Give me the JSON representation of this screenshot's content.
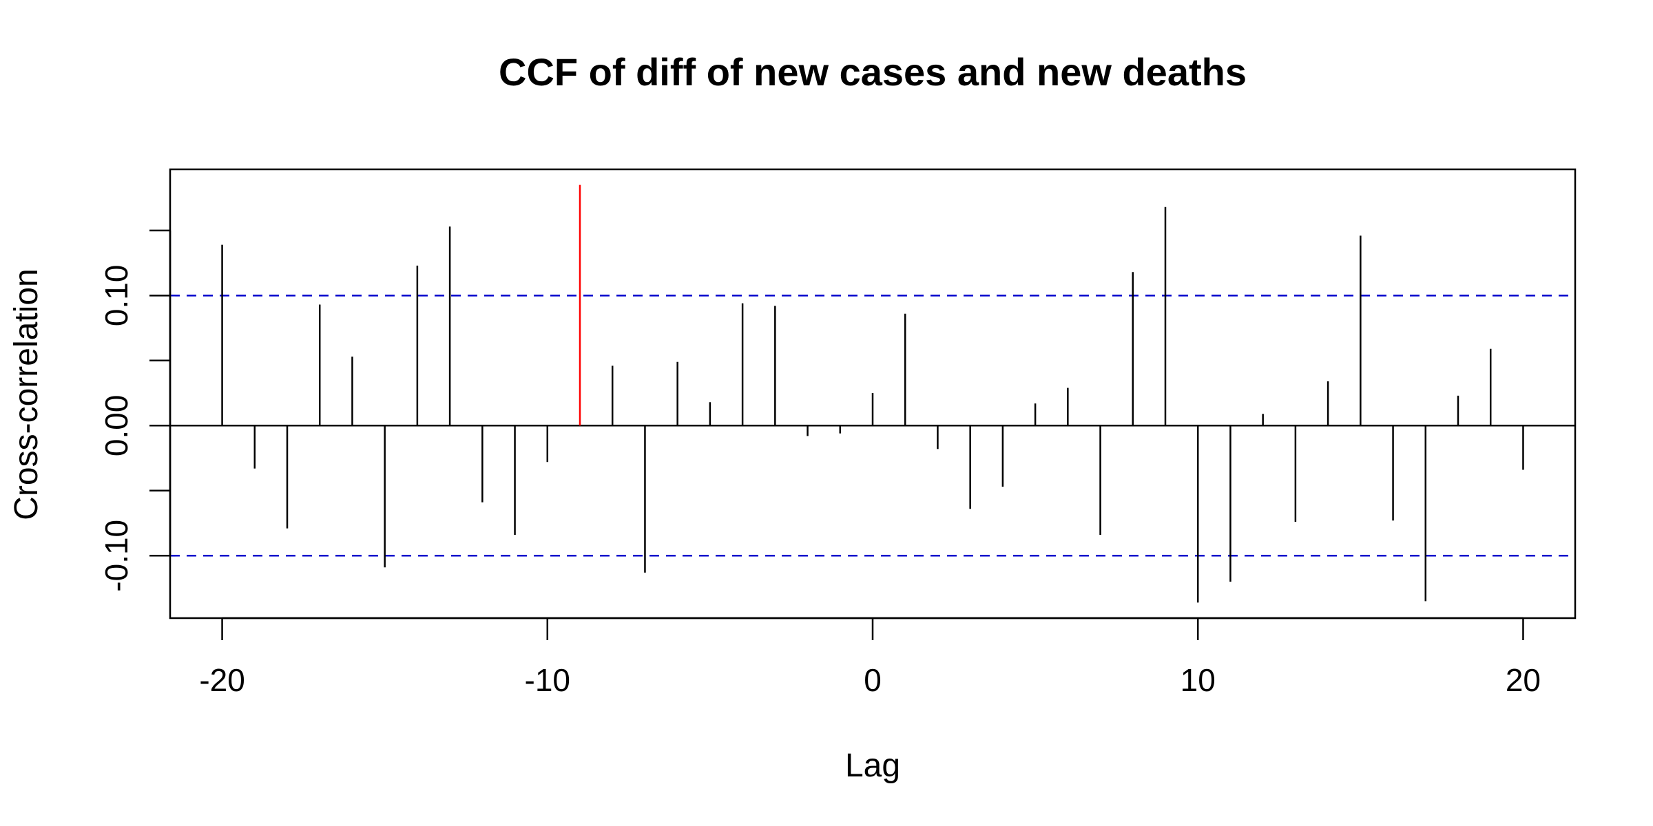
{
  "chart_data": {
    "type": "bar",
    "title": "CCF of diff of new cases and new deaths",
    "xlabel": "Lag",
    "ylabel": "Cross-correlation",
    "xlim": [
      -21.6,
      21.6
    ],
    "ylim": [
      -0.148,
      0.197
    ],
    "x_ticks": [
      -20,
      -10,
      0,
      10,
      20
    ],
    "x_tick_labels": [
      "-20",
      "-10",
      "0",
      "10",
      "20"
    ],
    "y_ticks": [
      -0.1,
      -0.05,
      0.0,
      0.05,
      0.1,
      0.15
    ],
    "y_tick_labels": [
      "-0.10",
      "",
      "0.00",
      "",
      "0.10",
      ""
    ],
    "confidence_bounds": [
      0.1,
      -0.1
    ],
    "highlighted_lag": -9,
    "colors": {
      "bars": "#000000",
      "highlight": "#ff0000",
      "bounds": "#0000cc",
      "zero_line": "#000000"
    },
    "series": [
      {
        "lags": [
          -20,
          -19,
          -18,
          -17,
          -16,
          -15,
          -14,
          -13,
          -12,
          -11,
          -10,
          -9,
          -8,
          -7,
          -6,
          -5,
          -4,
          -3,
          -2,
          -1,
          0,
          1,
          2,
          3,
          4,
          5,
          6,
          7,
          8,
          9,
          10,
          11,
          12,
          13,
          14,
          15,
          16,
          17,
          18,
          19,
          20
        ],
        "values": [
          0.139,
          -0.033,
          -0.079,
          0.093,
          0.053,
          -0.109,
          0.123,
          0.153,
          -0.059,
          -0.084,
          -0.028,
          0.185,
          0.046,
          -0.113,
          0.049,
          0.018,
          0.094,
          0.092,
          -0.008,
          -0.006,
          0.025,
          0.086,
          -0.018,
          -0.064,
          -0.047,
          0.017,
          0.029,
          -0.084,
          0.118,
          0.168,
          -0.136,
          -0.12,
          0.009,
          -0.074,
          0.034,
          0.146,
          -0.073,
          -0.135,
          0.023,
          0.059,
          -0.034
        ]
      }
    ]
  }
}
